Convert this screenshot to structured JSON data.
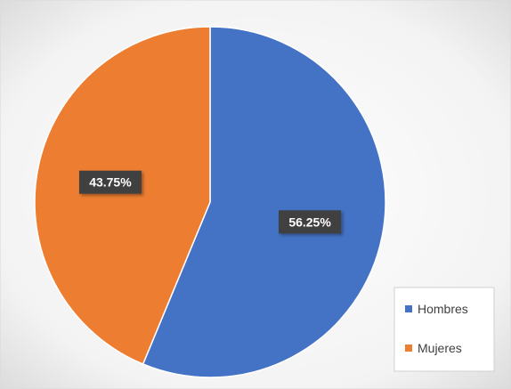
{
  "chart_data": {
    "type": "pie",
    "categories": [
      "Hombres",
      "Mujeres"
    ],
    "values": [
      56.25,
      43.75
    ],
    "data_labels": [
      "56.25%",
      "43.75%"
    ],
    "colors": [
      "#4472c4",
      "#ed7d31"
    ],
    "start_angle_deg": 0,
    "direction": "clockwise",
    "legend": {
      "placement": "bottom-right",
      "entries": [
        "Hombres",
        "Mujeres"
      ]
    },
    "background": "gradient-gray",
    "title": ""
  }
}
